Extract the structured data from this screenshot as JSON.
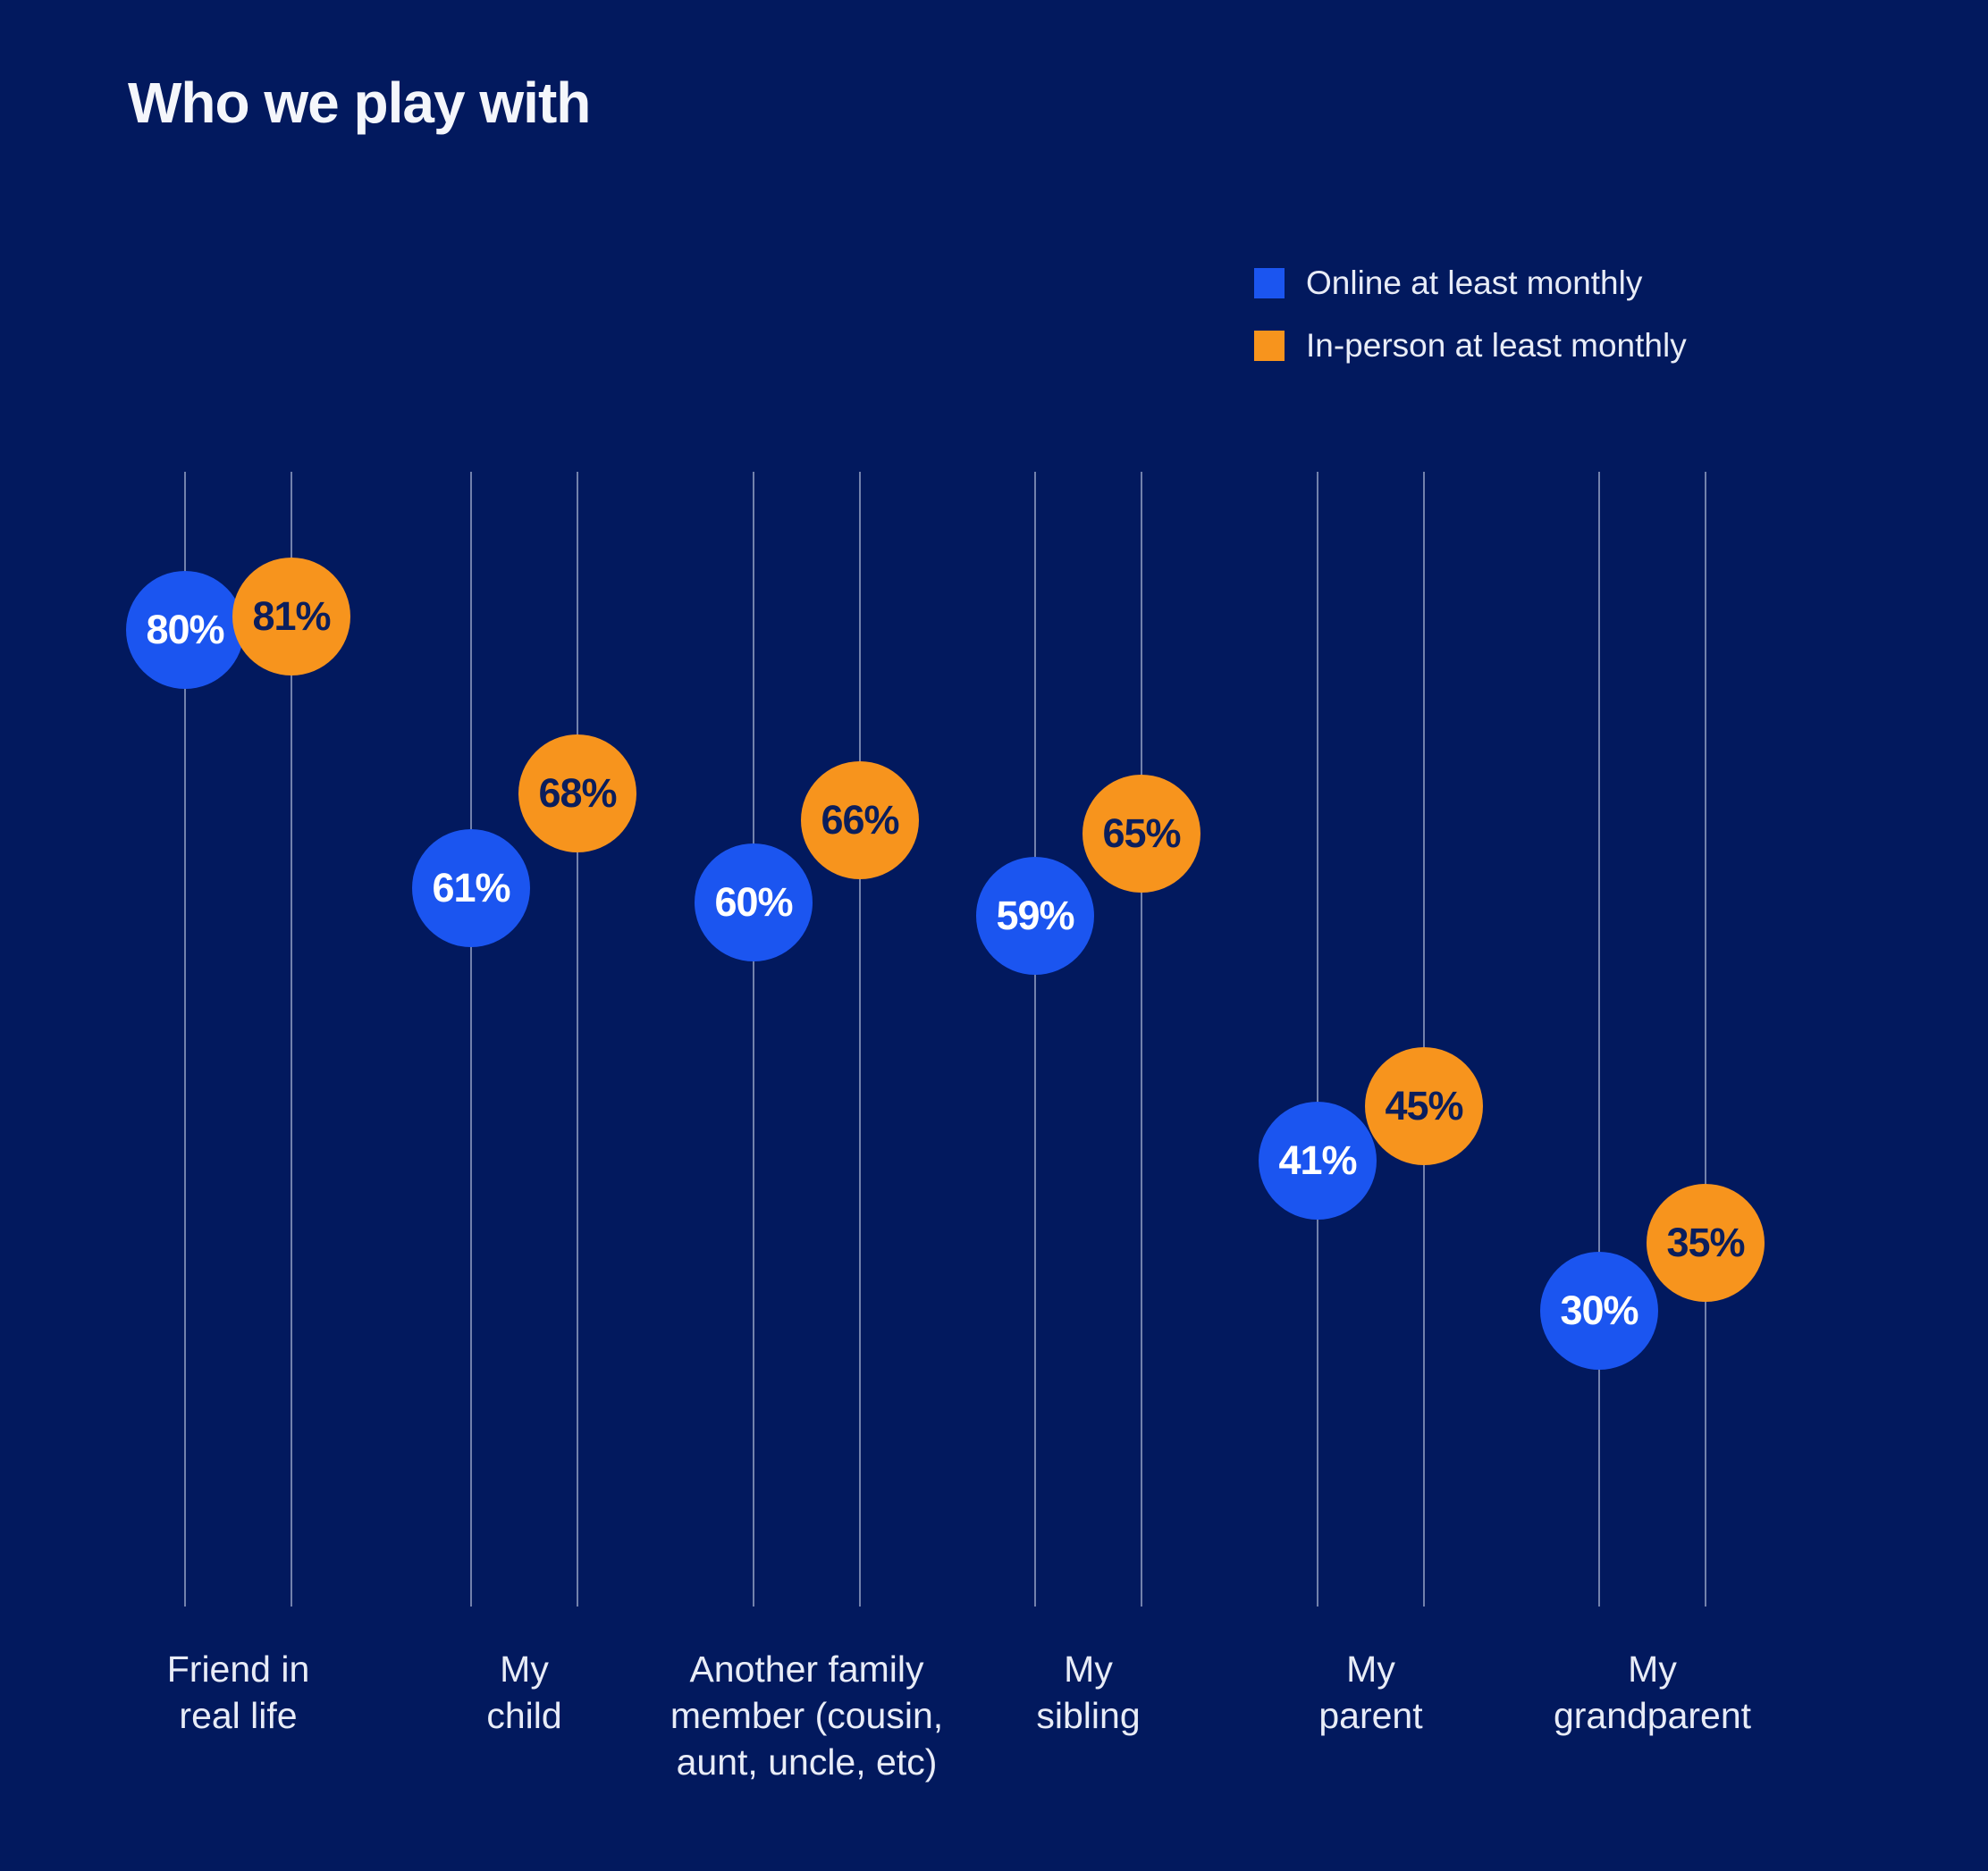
{
  "title": "Who we play with",
  "colors": {
    "background": "#02195e",
    "online_blue": "#1b55f0",
    "inperson_orange": "#f7941d",
    "value_text_on_blue": "#ffffff",
    "value_text_on_orange": "#0b1e5c",
    "gridline": "rgba(208,215,236,0.55)",
    "label_text": "#e8ecf7",
    "title_text": "#f4f6fb"
  },
  "legend": [
    {
      "label": "Online at least monthly",
      "color": "#1b55f0",
      "swatch": "blue-square"
    },
    {
      "label": "In-person at least monthly",
      "color": "#f7941d",
      "swatch": "orange-square"
    }
  ],
  "chart_data": {
    "type": "scatter",
    "subtype": "paired-dot-plot",
    "title": "Who we play with",
    "value_format": "percent",
    "ylim": [
      0,
      100
    ],
    "grid": "vertical-only",
    "legend_position": "top-right",
    "categories": [
      {
        "label": "Friend in real life",
        "lines": [
          "Friend in",
          "real life"
        ]
      },
      {
        "label": "My child",
        "lines": [
          "My",
          "child"
        ]
      },
      {
        "label": "Another family member (cousin, aunt, uncle, etc)",
        "lines": [
          "Another family",
          "member (cousin,",
          "aunt, uncle, etc)"
        ]
      },
      {
        "label": "My sibling",
        "lines": [
          "My",
          "sibling"
        ]
      },
      {
        "label": "My parent",
        "lines": [
          "My",
          "parent"
        ]
      },
      {
        "label": "My grandparent",
        "lines": [
          "My",
          "grandparent"
        ]
      }
    ],
    "series": [
      {
        "name": "Online at least monthly",
        "color": "#1b55f0",
        "text_color": "#ffffff",
        "values": [
          80,
          61,
          60,
          59,
          41,
          30
        ],
        "labels": [
          "80%",
          "61%",
          "60%",
          "59%",
          "41%",
          "30%"
        ]
      },
      {
        "name": "In-person at least monthly",
        "color": "#f7941d",
        "text_color": "#0b1e5c",
        "values": [
          81,
          68,
          66,
          65,
          45,
          35
        ],
        "labels": [
          "81%",
          "68%",
          "66%",
          "65%",
          "45%",
          "35%"
        ]
      }
    ]
  }
}
